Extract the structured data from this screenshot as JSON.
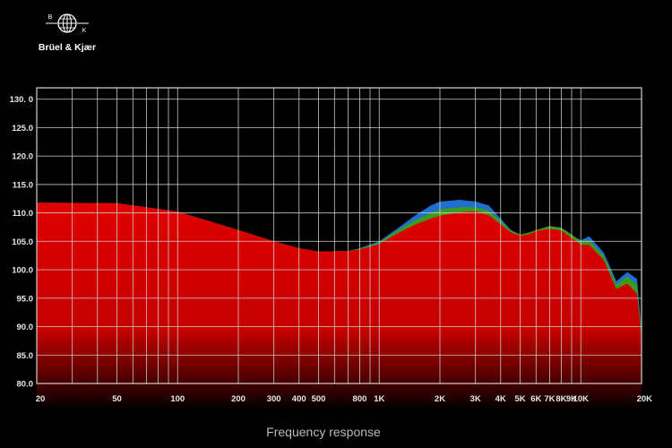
{
  "brand": {
    "name": "Brüel & Kjær",
    "logo_letters": [
      "B",
      "K"
    ],
    "logo_icon": "globe-icon"
  },
  "chart_data": {
    "type": "area",
    "title": "",
    "xlabel": "Frequency response",
    "ylabel": "",
    "x_scale": "log",
    "xlim": [
      20,
      20000
    ],
    "ylim": [
      80,
      132
    ],
    "grid": true,
    "y_ticks": [
      {
        "value": 130,
        "label": "130. 0"
      },
      {
        "value": 125,
        "label": "125.0"
      },
      {
        "value": 120,
        "label": "120.0"
      },
      {
        "value": 115,
        "label": "115.0"
      },
      {
        "value": 110,
        "label": "110.0"
      },
      {
        "value": 105,
        "label": "105.0"
      },
      {
        "value": 100,
        "label": "100.0"
      },
      {
        "value": 95,
        "label": "95.0"
      },
      {
        "value": 90,
        "label": "90.0"
      },
      {
        "value": 85,
        "label": "85.0"
      },
      {
        "value": 80,
        "label": "80.0"
      }
    ],
    "x_ticks": [
      {
        "value": 20,
        "label": "20"
      },
      {
        "value": 50,
        "label": "50"
      },
      {
        "value": 100,
        "label": "100"
      },
      {
        "value": 200,
        "label": "200"
      },
      {
        "value": 300,
        "label": "300"
      },
      {
        "value": 400,
        "label": "400"
      },
      {
        "value": 500,
        "label": "500"
      },
      {
        "value": 800,
        "label": "800"
      },
      {
        "value": 1000,
        "label": "1K"
      },
      {
        "value": 2000,
        "label": "2K"
      },
      {
        "value": 3000,
        "label": "3K"
      },
      {
        "value": 4000,
        "label": "4K"
      },
      {
        "value": 5000,
        "label": "5K"
      },
      {
        "value": 6000,
        "label": "6K"
      },
      {
        "value": 7000,
        "label": "7K"
      },
      {
        "value": 8000,
        "label": "8K"
      },
      {
        "value": 9000,
        "label": "9K"
      },
      {
        "value": 10000,
        "label": "10K"
      },
      {
        "value": 20000,
        "label": "20K"
      }
    ],
    "minor_gridlines": [
      30,
      40,
      60,
      70,
      80,
      90,
      600,
      700,
      900
    ],
    "series": [
      {
        "color": "#1f6fd1",
        "x": [
          20,
          50,
          100,
          200,
          300,
          400,
          500,
          700,
          800,
          1000,
          1200,
          1500,
          1800,
          2000,
          2500,
          3000,
          3500,
          4000,
          4500,
          5000,
          5500,
          6000,
          7000,
          8000,
          9000,
          10000,
          11000,
          13000,
          15000,
          17000,
          19000,
          20000
        ],
        "y": [
          111.8,
          111.7,
          110.2,
          107.0,
          105.0,
          103.8,
          103.2,
          103.3,
          103.8,
          105.0,
          107.0,
          109.5,
          111.3,
          112.0,
          112.3,
          112.0,
          111.3,
          109.0,
          107.0,
          106.2,
          106.4,
          107.0,
          107.6,
          107.2,
          106.0,
          105.2,
          105.9,
          103.0,
          98.0,
          99.6,
          98.4,
          89.0
        ]
      },
      {
        "color": "#3c9a1f",
        "x": [
          20,
          50,
          100,
          200,
          300,
          400,
          500,
          700,
          800,
          1000,
          1200,
          1500,
          1800,
          2000,
          2500,
          3000,
          3500,
          4000,
          4500,
          5000,
          5500,
          6000,
          7000,
          8000,
          9000,
          10000,
          11000,
          13000,
          15000,
          17000,
          19000,
          20000
        ],
        "y": [
          111.8,
          111.7,
          110.2,
          107.0,
          105.0,
          103.8,
          103.2,
          103.3,
          103.7,
          104.8,
          106.7,
          108.7,
          110.0,
          110.6,
          111.0,
          111.0,
          110.4,
          108.6,
          106.9,
          106.2,
          106.5,
          107.0,
          107.7,
          107.4,
          106.2,
          105.0,
          105.2,
          102.5,
          97.4,
          98.8,
          97.4,
          88.5
        ]
      },
      {
        "color": "#e00000",
        "x": [
          20,
          50,
          100,
          200,
          300,
          400,
          500,
          700,
          800,
          1000,
          1200,
          1500,
          1800,
          2000,
          2500,
          3000,
          3500,
          4000,
          4500,
          5000,
          5500,
          6000,
          7000,
          8000,
          9000,
          10000,
          11000,
          13000,
          15000,
          17000,
          19000,
          20000
        ],
        "y": [
          111.8,
          111.7,
          110.2,
          107.0,
          105.0,
          103.8,
          103.2,
          103.3,
          103.6,
          104.5,
          106.2,
          107.9,
          109.0,
          109.5,
          110.1,
          110.3,
          109.6,
          108.0,
          106.6,
          106.0,
          106.2,
          106.8,
          107.2,
          106.9,
          105.6,
          104.4,
          104.4,
          101.7,
          96.6,
          97.6,
          95.8,
          88.0
        ]
      }
    ]
  }
}
